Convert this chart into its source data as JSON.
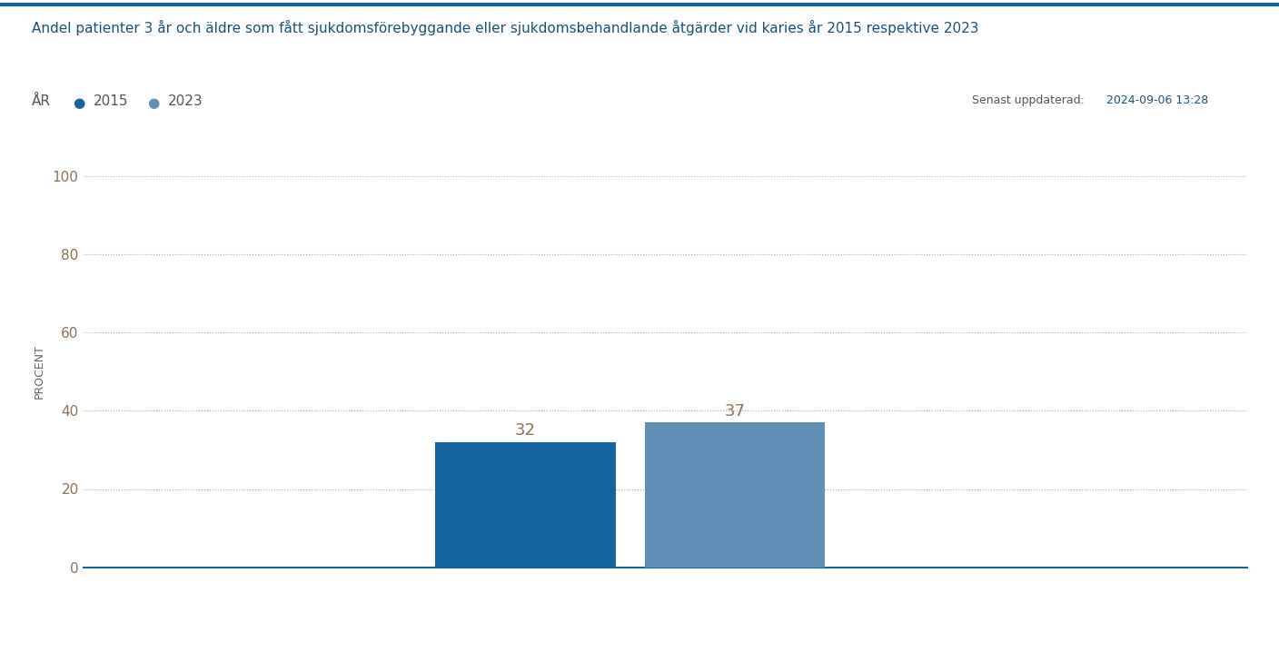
{
  "title": "Andel patienter 3 år och äldre som fått sjukdomsförebyggande eller sjukdomsbehandlande åtgärder vid karies år 2015 respektive 2023",
  "subtitle_label": "ÅR",
  "legend_labels": [
    "2015",
    "2023"
  ],
  "legend_colors": [
    "#1464a0",
    "#5f8fb4"
  ],
  "bar_values": [
    32,
    37
  ],
  "bar_colors": [
    "#1464a0",
    "#5f8fb4"
  ],
  "bar_positions": [
    0.38,
    0.56
  ],
  "bar_width": 0.155,
  "ylabel": "PROCENT",
  "ylim": [
    0,
    100
  ],
  "yticks": [
    0,
    20,
    40,
    60,
    80,
    100
  ],
  "xlim": [
    0,
    1
  ],
  "update_label": "Senast uppdaterad:",
  "update_date": "2024-09-06 13:28",
  "background_color": "#ffffff",
  "title_color": "#1a5276",
  "tick_color": "#8B7355",
  "grid_color": "#aaaaaa",
  "update_label_color": "#555555",
  "update_date_color": "#1a5276",
  "legend_text_color": "#555555",
  "ylabel_color": "#666666",
  "bar_label_color": "#8B7355"
}
